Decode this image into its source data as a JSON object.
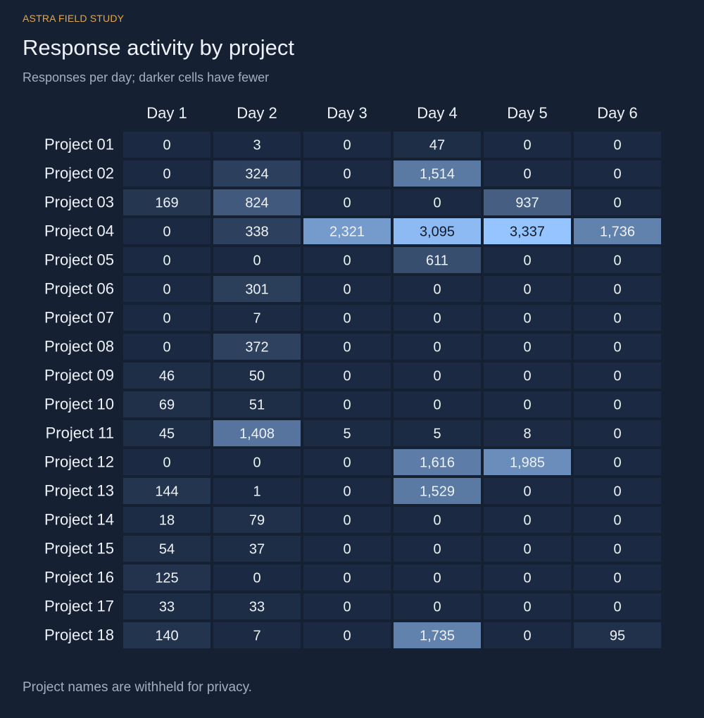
{
  "header": {
    "kicker": "ASTRA FIELD STUDY",
    "title": "Response activity by project",
    "subtitle": "Responses per day; darker cells have fewer"
  },
  "footer": {
    "note": "Project names are withheld for privacy."
  },
  "colors": {
    "background": "#152032",
    "cell_low": "#1b2a42",
    "cell_high": "#96c4ff",
    "kicker": "#e3a84a"
  },
  "chart_data": {
    "type": "heatmap",
    "x": [
      "Day 1",
      "Day 2",
      "Day 3",
      "Day 4",
      "Day 5",
      "Day 6"
    ],
    "y": [
      "Project 01",
      "Project 02",
      "Project 03",
      "Project 04",
      "Project 05",
      "Project 06",
      "Project 07",
      "Project 08",
      "Project 09",
      "Project 10",
      "Project 11",
      "Project 12",
      "Project 13",
      "Project 14",
      "Project 15",
      "Project 16",
      "Project 17",
      "Project 18"
    ],
    "values": [
      [
        0,
        3,
        0,
        47,
        0,
        0
      ],
      [
        0,
        324,
        0,
        1514,
        0,
        0
      ],
      [
        169,
        824,
        0,
        0,
        937,
        0
      ],
      [
        0,
        338,
        2321,
        3095,
        3337,
        1736
      ],
      [
        0,
        0,
        0,
        611,
        0,
        0
      ],
      [
        0,
        301,
        0,
        0,
        0,
        0
      ],
      [
        0,
        7,
        0,
        0,
        0,
        0
      ],
      [
        0,
        372,
        0,
        0,
        0,
        0
      ],
      [
        46,
        50,
        0,
        0,
        0,
        0
      ],
      [
        69,
        51,
        0,
        0,
        0,
        0
      ],
      [
        45,
        1408,
        5,
        5,
        8,
        0
      ],
      [
        0,
        0,
        0,
        1616,
        1985,
        0
      ],
      [
        144,
        1,
        0,
        1529,
        0,
        0
      ],
      [
        18,
        79,
        0,
        0,
        0,
        0
      ],
      [
        54,
        37,
        0,
        0,
        0,
        0
      ],
      [
        125,
        0,
        0,
        0,
        0,
        0
      ],
      [
        33,
        33,
        0,
        0,
        0,
        0
      ],
      [
        140,
        7,
        0,
        1735,
        0,
        95
      ]
    ],
    "color_scale": "dark-to-light blue, darker = fewer",
    "legend": "none"
  }
}
